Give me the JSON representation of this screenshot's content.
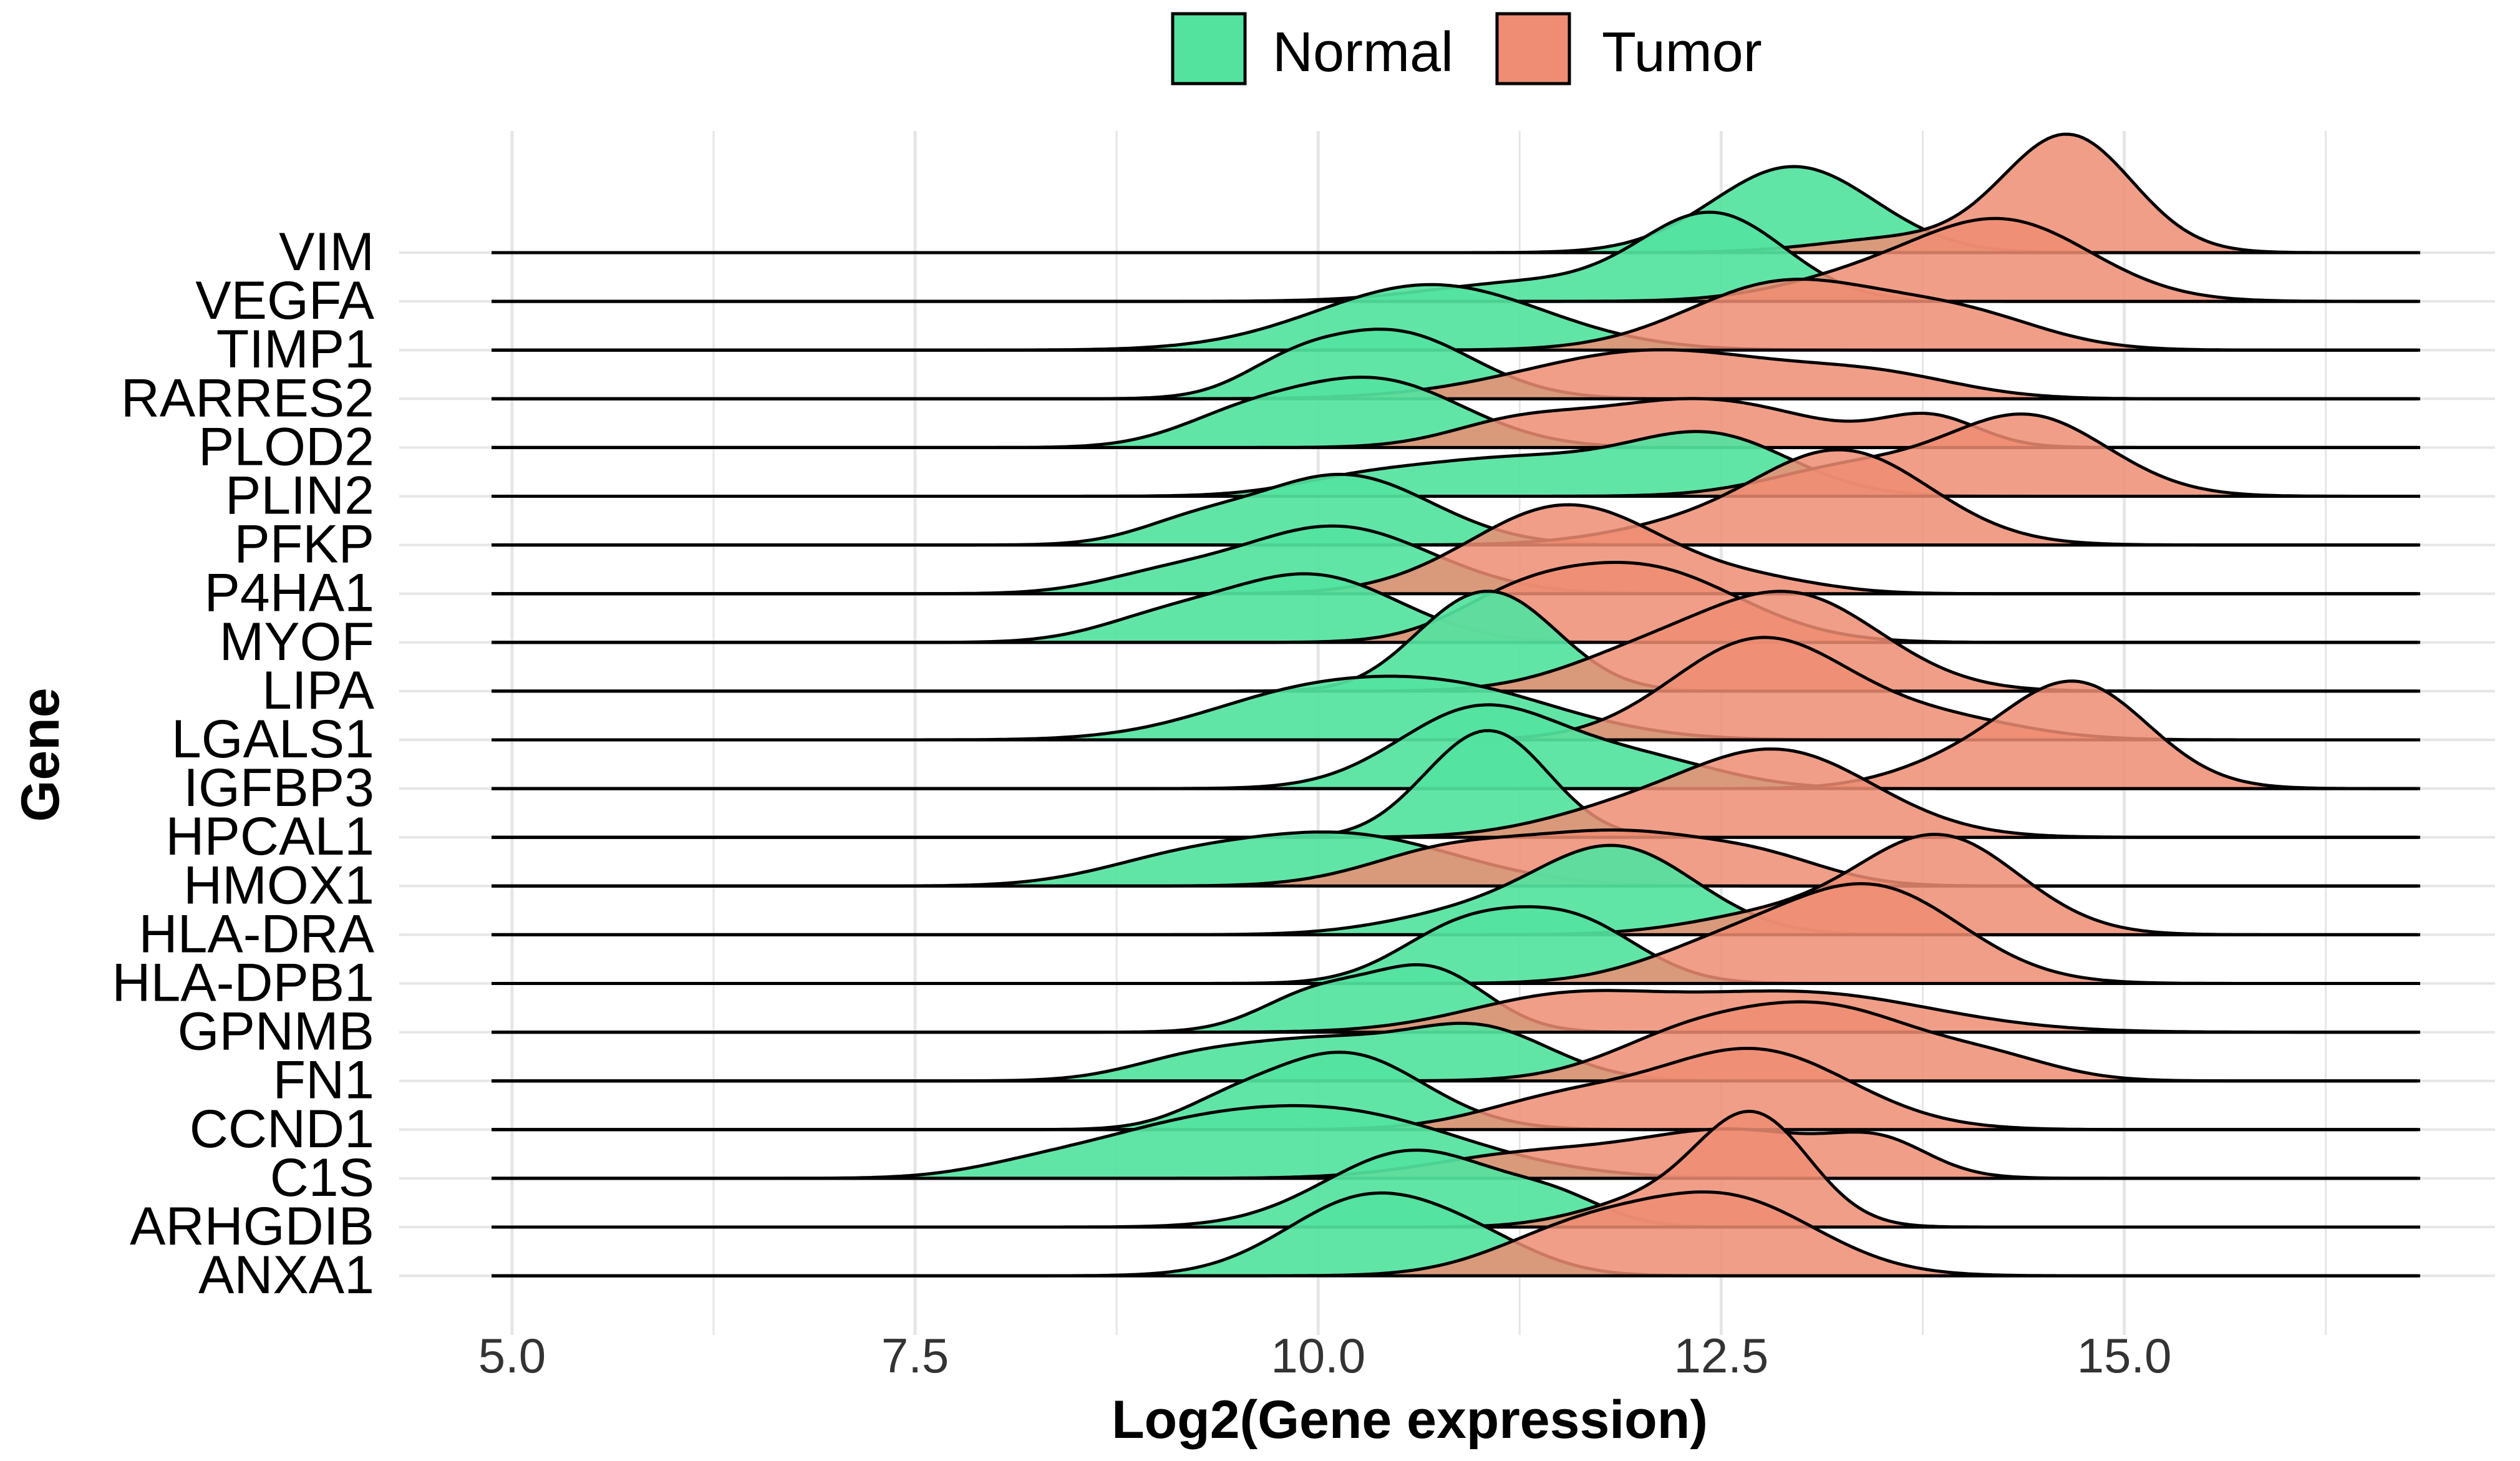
{
  "chart_data": {
    "type": "ridgeline",
    "xlabel": "Log2(Gene expression)",
    "ylabel": "Gene",
    "xlim": [
      4.3,
      17.3
    ],
    "x_ticks": [
      "5.0",
      "7.5",
      "10.0",
      "12.5",
      "15.0"
    ],
    "x_tick_values": [
      5.0,
      7.5,
      10.0,
      12.5,
      15.0
    ],
    "grid": true,
    "legend_position": "top",
    "categories": [
      "VIM",
      "VEGFA",
      "TIMP1",
      "RARRES2",
      "PLOD2",
      "PLIN2",
      "PFKP",
      "P4HA1",
      "MYOF",
      "LIPA",
      "LGALS1",
      "IGFBP3",
      "HPCAL1",
      "HMOX1",
      "HLA-DRA",
      "HLA-DPB1",
      "GPNMB",
      "FN1",
      "CCND1",
      "C1S",
      "ARHGDIB",
      "ANXA1"
    ],
    "series": [
      {
        "name": "Normal",
        "color": "#54E39F",
        "peaks": [
          [
            [
              12.95,
              0.5,
              0.92
            ]
          ],
          [
            [
              12.45,
              0.45,
              0.92
            ],
            [
              11.3,
              0.6,
              0.2
            ]
          ],
          [
            [
              10.7,
              0.7,
              0.7
            ]
          ],
          [
            [
              10.45,
              0.5,
              0.72
            ],
            [
              9.8,
              0.3,
              0.2
            ]
          ],
          [
            [
              10.35,
              0.55,
              0.72
            ],
            [
              9.5,
              0.4,
              0.25
            ]
          ],
          [
            [
              12.45,
              0.5,
              0.6
            ],
            [
              11.2,
              0.7,
              0.4
            ],
            [
              10.2,
              0.4,
              0.1
            ]
          ],
          [
            [
              10.15,
              0.55,
              0.75
            ],
            [
              9.2,
              0.35,
              0.18
            ]
          ],
          [
            [
              10.1,
              0.6,
              0.72
            ],
            [
              9.0,
              0.4,
              0.15
            ]
          ],
          [
            [
              9.95,
              0.55,
              0.72
            ],
            [
              9.0,
              0.4,
              0.2
            ]
          ],
          [
            [
              11.1,
              0.4,
              1.0
            ],
            [
              10.7,
              0.3,
              0.15
            ]
          ],
          [
            [
              10.8,
              0.7,
              0.55
            ],
            [
              9.8,
              0.6,
              0.35
            ]
          ],
          [
            [
              11.0,
              0.5,
              0.85
            ],
            [
              12.0,
              0.5,
              0.3
            ]
          ],
          [
            [
              11.1,
              0.35,
              1.05
            ],
            [
              10.7,
              0.3,
              0.2
            ]
          ],
          [
            [
              10.15,
              0.7,
              0.55
            ],
            [
              9.1,
              0.5,
              0.2
            ]
          ],
          [
            [
              11.85,
              0.5,
              0.92
            ],
            [
              10.9,
              0.5,
              0.2
            ]
          ],
          [
            [
              11.6,
              0.4,
              0.62
            ],
            [
              10.9,
              0.4,
              0.58
            ]
          ],
          [
            [
              10.7,
              0.35,
              0.65
            ],
            [
              10.0,
              0.35,
              0.42
            ]
          ],
          [
            [
              11.0,
              0.45,
              0.55
            ],
            [
              10.0,
              0.5,
              0.4
            ],
            [
              9.2,
              0.4,
              0.2
            ]
          ],
          [
            [
              10.15,
              0.5,
              0.82
            ],
            [
              9.4,
              0.3,
              0.15
            ]
          ],
          [
            [
              10.1,
              0.8,
              0.7
            ],
            [
              9.0,
              0.6,
              0.3
            ],
            [
              8.2,
              0.4,
              0.08
            ]
          ],
          [
            [
              10.6,
              0.55,
              0.82
            ],
            [
              11.5,
              0.3,
              0.2
            ]
          ],
          [
            [
              10.3,
              0.5,
              0.82
            ],
            [
              11.0,
              0.4,
              0.25
            ]
          ]
        ]
      },
      {
        "name": "Tumor",
        "color": "#EE8D73",
        "peaks": [
          [
            [
              14.65,
              0.4,
              1.25
            ],
            [
              13.6,
              0.5,
              0.15
            ]
          ],
          [
            [
              14.25,
              0.55,
              0.85
            ],
            [
              13.3,
              0.5,
              0.2
            ]
          ],
          [
            [
              12.9,
              0.6,
              0.72
            ],
            [
              14.0,
              0.5,
              0.35
            ]
          ],
          [
            [
              12.1,
              0.8,
              0.52
            ],
            [
              13.5,
              0.5,
              0.2
            ]
          ],
          [
            [
              12.35,
              0.7,
              0.52
            ],
            [
              13.8,
              0.3,
              0.3
            ],
            [
              11.2,
              0.4,
              0.2
            ]
          ],
          [
            [
              14.4,
              0.5,
              0.85
            ],
            [
              13.3,
              0.5,
              0.3
            ]
          ],
          [
            [
              13.25,
              0.55,
              1.0
            ],
            [
              12.2,
              0.5,
              0.15
            ]
          ],
          [
            [
              11.55,
              0.6,
              0.95
            ],
            [
              12.8,
              0.4,
              0.1
            ]
          ],
          [
            [
              12.0,
              0.6,
              0.8
            ],
            [
              11.2,
              0.4,
              0.3
            ]
          ],
          [
            [
              12.95,
              0.55,
              1.0
            ],
            [
              12.0,
              0.5,
              0.35
            ]
          ],
          [
            [
              12.75,
              0.55,
              1.08
            ],
            [
              13.9,
              0.5,
              0.2
            ]
          ],
          [
            [
              14.7,
              0.45,
              1.12
            ],
            [
              13.9,
              0.4,
              0.2
            ]
          ],
          [
            [
              12.85,
              0.6,
              0.92
            ],
            [
              11.8,
              0.5,
              0.2
            ]
          ],
          [
            [
              11.9,
              0.6,
              0.55
            ],
            [
              10.8,
              0.5,
              0.35
            ],
            [
              12.8,
              0.4,
              0.2
            ]
          ],
          [
            [
              13.85,
              0.5,
              1.05
            ],
            [
              12.8,
              0.5,
              0.2
            ]
          ],
          [
            [
              13.45,
              0.55,
              1.0
            ],
            [
              12.5,
              0.5,
              0.35
            ]
          ],
          [
            [
              13.0,
              0.8,
              0.42
            ],
            [
              11.5,
              0.6,
              0.35
            ]
          ],
          [
            [
              13.2,
              0.55,
              0.72
            ],
            [
              12.3,
              0.5,
              0.45
            ],
            [
              14.2,
              0.4,
              0.2
            ]
          ],
          [
            [
              12.7,
              0.6,
              0.85
            ],
            [
              11.5,
              0.5,
              0.3
            ]
          ],
          [
            [
              12.6,
              0.6,
              0.5
            ],
            [
              13.5,
              0.3,
              0.3
            ],
            [
              11.3,
              0.6,
              0.25
            ]
          ],
          [
            [
              12.7,
              0.35,
              1.18
            ],
            [
              12.0,
              0.4,
              0.25
            ]
          ],
          [
            [
              12.55,
              0.55,
              0.8
            ],
            [
              11.6,
              0.5,
              0.45
            ]
          ]
        ]
      }
    ]
  },
  "colors": {
    "grid": "#E6E6E6",
    "outline": "#000000",
    "normal": "#54E39F",
    "tumor": "#EE8D73"
  },
  "legend": [
    {
      "label": "Normal"
    },
    {
      "label": "Tumor"
    }
  ]
}
